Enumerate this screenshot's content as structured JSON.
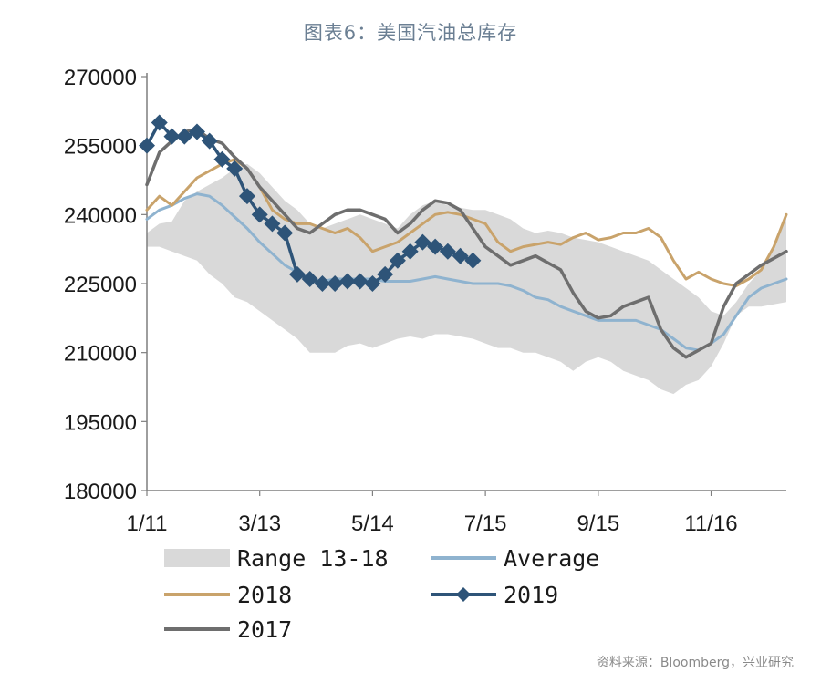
{
  "title": "图表6：美国汽油总库存",
  "source": "资料来源：Bloomberg，兴业研究",
  "chart_data": {
    "type": "line",
    "ylim": [
      180000,
      270000
    ],
    "yticks": [
      180000,
      195000,
      210000,
      225000,
      240000,
      255000,
      270000
    ],
    "xlim": [
      1,
      52
    ],
    "xticks": [
      {
        "label": "1/11",
        "week": 1
      },
      {
        "label": "3/13",
        "week": 10
      },
      {
        "label": "5/14",
        "week": 19
      },
      {
        "label": "7/15",
        "week": 28
      },
      {
        "label": "9/15",
        "week": 37
      },
      {
        "label": "11/16",
        "week": 46
      }
    ],
    "legend": [
      {
        "label": "Range 13-18",
        "key": "range"
      },
      {
        "label": "Average",
        "key": "average"
      },
      {
        "label": "2018",
        "key": "y2018"
      },
      {
        "label": "2019",
        "key": "y2019"
      },
      {
        "label": "2017",
        "key": "y2017"
      }
    ],
    "colors": {
      "range": "#d9d9d9",
      "average": "#8fb3cf",
      "y2018": "#c9a36b",
      "y2019": "#2e5478",
      "y2017": "#6e6e6e"
    },
    "range_high": [
      236000,
      238000,
      238500,
      243000,
      245000,
      246500,
      248000,
      250000,
      251000,
      249000,
      246000,
      243000,
      241000,
      238000,
      237000,
      238000,
      239000,
      240000,
      239000,
      238000,
      237000,
      240000,
      242000,
      243000,
      242000,
      241500,
      241000,
      241000,
      240000,
      239000,
      237000,
      236000,
      236500,
      236000,
      235000,
      234500,
      234000,
      233000,
      232000,
      231000,
      230000,
      228000,
      226000,
      224000,
      222000,
      219000,
      218000,
      221000,
      225000,
      228000,
      233000,
      240000
    ],
    "range_low": [
      233000,
      233000,
      232000,
      231000,
      230000,
      227000,
      225000,
      222000,
      221000,
      219000,
      217000,
      215000,
      213000,
      210000,
      210000,
      210000,
      211500,
      212000,
      211000,
      212000,
      213000,
      213500,
      213000,
      214000,
      214000,
      213500,
      213000,
      212000,
      211000,
      211000,
      210000,
      210000,
      209000,
      208000,
      206000,
      208000,
      209000,
      208000,
      206000,
      205000,
      204000,
      202000,
      201000,
      203000,
      204000,
      207000,
      212000,
      218000,
      220000,
      220000,
      220500,
      221000
    ],
    "average": [
      239000,
      241000,
      242000,
      243500,
      244500,
      244000,
      242000,
      239500,
      237000,
      234000,
      231500,
      229000,
      227500,
      226000,
      225500,
      226000,
      226000,
      226000,
      226000,
      225500,
      225500,
      225500,
      226000,
      226500,
      226000,
      225500,
      225000,
      225000,
      225000,
      224500,
      223500,
      222000,
      221500,
      220000,
      219000,
      218000,
      217000,
      217000,
      217000,
      217000,
      216000,
      215000,
      213000,
      211000,
      210500,
      212000,
      214000,
      218000,
      222000,
      224000,
      225000,
      226000
    ],
    "y2018": [
      241000,
      244000,
      242000,
      245000,
      248000,
      249500,
      251000,
      252000,
      250000,
      246000,
      241000,
      239000,
      238000,
      238000,
      237000,
      236000,
      237000,
      235000,
      232000,
      233000,
      234000,
      236000,
      238000,
      240000,
      240500,
      240000,
      239000,
      238000,
      234000,
      232000,
      233000,
      233500,
      234000,
      233500,
      235000,
      236000,
      234500,
      235000,
      236000,
      236000,
      237000,
      235000,
      230000,
      226000,
      227500,
      226000,
      225000,
      224500,
      226000,
      228000,
      233000,
      240000
    ],
    "y2017": [
      246500,
      253500,
      256000,
      258000,
      258500,
      256500,
      255500,
      252500,
      250000,
      246000,
      243000,
      240000,
      237000,
      236000,
      238000,
      240000,
      241000,
      241000,
      240000,
      239000,
      236000,
      238000,
      241000,
      243000,
      242500,
      241000,
      237000,
      233000,
      231000,
      229000,
      230000,
      231000,
      229500,
      228000,
      223000,
      219000,
      217500,
      218000,
      220000,
      221000,
      222000,
      215000,
      211000,
      209000,
      210500,
      212000,
      220000,
      225000,
      227000,
      229000,
      230500,
      232000
    ],
    "y2019": [
      255000,
      260000,
      257000,
      257000,
      258000,
      256000,
      252000,
      250000,
      244000,
      240000,
      238000,
      236000,
      227000,
      226000,
      225000,
      225000,
      225500,
      225500,
      225000,
      227000,
      230000,
      232000,
      234000,
      233000,
      232000,
      231000,
      230000
    ]
  }
}
